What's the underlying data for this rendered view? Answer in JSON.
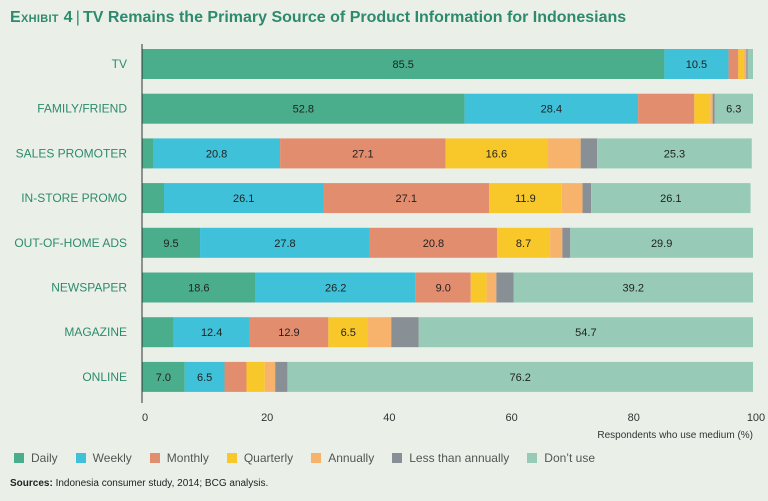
{
  "header": {
    "exhibit": "Exhibit 4",
    "separator": "|",
    "title": "TV Remains the Primary Source of Product Information for Indonesians"
  },
  "footer": {
    "sources_label": "Sources:",
    "sources_text": "Indonesia consumer study, 2014; BCG analysis."
  },
  "chart_data": {
    "type": "bar",
    "orientation": "horizontal",
    "stacked": true,
    "categories": [
      "TV",
      "FAMILY/FRIEND",
      "SALES PROMOTER",
      "IN-STORE PROMO",
      "OUT-OF-HOME ADS",
      "NEWSPAPER",
      "MAGAZINE",
      "ONLINE"
    ],
    "series": [
      {
        "name": "Daily",
        "color": "#4aad8b",
        "values": [
          85.5,
          52.8,
          1.8,
          3.6,
          9.5,
          18.6,
          5.2,
          7.0
        ]
      },
      {
        "name": "Weekly",
        "color": "#3ec1d9",
        "values": [
          10.5,
          28.4,
          20.8,
          26.1,
          27.8,
          26.2,
          12.4,
          6.5
        ]
      },
      {
        "name": "Monthly",
        "color": "#e38d6f",
        "values": [
          1.6,
          9.2,
          27.1,
          27.1,
          20.8,
          9.0,
          12.9,
          3.6
        ]
      },
      {
        "name": "Quarterly",
        "color": "#f8c82a",
        "values": [
          0.8,
          2.6,
          16.6,
          11.9,
          8.7,
          2.6,
          6.5,
          3.0
        ]
      },
      {
        "name": "Annually",
        "color": "#f7b36b",
        "values": [
          0.5,
          0.4,
          5.5,
          3.4,
          2.0,
          1.6,
          3.8,
          1.7
        ]
      },
      {
        "name": "Less than annually",
        "color": "#888f95",
        "values": [
          0.2,
          0.3,
          2.7,
          1.4,
          1.3,
          2.8,
          4.5,
          2.0
        ]
      },
      {
        "name": "Don’t use",
        "color": "#97cbb8",
        "values": [
          0.9,
          6.3,
          25.3,
          26.1,
          29.9,
          39.2,
          54.7,
          76.2
        ]
      }
    ],
    "data_labels": [
      [
        {
          "series": 0,
          "text": "85.5"
        },
        {
          "series": 1,
          "text": "10.5"
        }
      ],
      [
        {
          "series": 0,
          "text": "52.8"
        },
        {
          "series": 1,
          "text": "28.4"
        },
        {
          "series": 6,
          "text": "6.3"
        }
      ],
      [
        {
          "series": 1,
          "text": "20.8"
        },
        {
          "series": 2,
          "text": "27.1"
        },
        {
          "series": 3,
          "text": "16.6"
        },
        {
          "series": 6,
          "text": "25.3"
        }
      ],
      [
        {
          "series": 1,
          "text": "26.1"
        },
        {
          "series": 2,
          "text": "27.1"
        },
        {
          "series": 3,
          "text": "11.9"
        },
        {
          "series": 6,
          "text": "26.1"
        }
      ],
      [
        {
          "series": 0,
          "text": "9.5"
        },
        {
          "series": 1,
          "text": "27.8"
        },
        {
          "series": 2,
          "text": "20.8"
        },
        {
          "series": 3,
          "text": "8.7"
        },
        {
          "series": 6,
          "text": "29.9"
        }
      ],
      [
        {
          "series": 0,
          "text": "18.6"
        },
        {
          "series": 1,
          "text": "26.2"
        },
        {
          "series": 2,
          "text": "9.0"
        },
        {
          "series": 6,
          "text": "39.2"
        }
      ],
      [
        {
          "series": 1,
          "text": "12.4"
        },
        {
          "series": 2,
          "text": "12.9"
        },
        {
          "series": 3,
          "text": "6.5"
        },
        {
          "series": 6,
          "text": "54.7"
        }
      ],
      [
        {
          "series": 0,
          "text": "7.0"
        },
        {
          "series": 1,
          "text": "6.5"
        },
        {
          "series": 6,
          "text": "76.2"
        }
      ]
    ],
    "x_ticks": [
      "0",
      "20",
      "40",
      "60",
      "80",
      "100"
    ],
    "xlim": [
      0,
      100
    ],
    "xlabel": "Respondents who use medium (%)",
    "ylabel": "",
    "legend_position": "bottom",
    "grid": false
  }
}
